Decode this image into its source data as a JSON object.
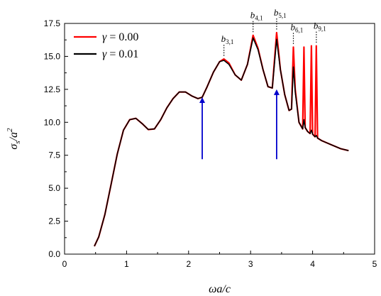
{
  "chart_data": {
    "type": "line",
    "title": "",
    "xlabel": "ωa/c",
    "ylabel_main": "σ",
    "ylabel_sub": "s",
    "ylabel_den": "/a",
    "ylabel_sup": "2",
    "xlim": [
      0,
      5
    ],
    "ylim": [
      0,
      17.5
    ],
    "x_ticks": [
      0,
      1,
      2,
      3,
      4,
      5
    ],
    "x_tick_labels": [
      "0",
      "1",
      "2",
      "3",
      "4",
      "5"
    ],
    "y_ticks": [
      0,
      2.5,
      5,
      7.5,
      10,
      12.5,
      15,
      17.5
    ],
    "y_tick_labels": [
      "0.0",
      "2.5",
      "5.0",
      "7.5",
      "10.0",
      "12.5",
      "15.0",
      "17.5"
    ],
    "grid": false,
    "legend_position": "top-left",
    "series": [
      {
        "name_symbol": "γ",
        "name_value": "= 0.00",
        "color": "#ff0000",
        "x": [
          0.48,
          0.55,
          0.65,
          0.75,
          0.85,
          0.95,
          1.05,
          1.15,
          1.25,
          1.35,
          1.45,
          1.55,
          1.65,
          1.75,
          1.85,
          1.95,
          2.05,
          2.15,
          2.22,
          2.3,
          2.4,
          2.5,
          2.57,
          2.65,
          2.75,
          2.85,
          2.95,
          3.04,
          3.12,
          3.2,
          3.28,
          3.35,
          3.42,
          3.48,
          3.55,
          3.62,
          3.66,
          3.69,
          3.72,
          3.78,
          3.84,
          3.86,
          3.88,
          3.92,
          3.96,
          3.98,
          4.0,
          4.04,
          4.06,
          4.08,
          4.15,
          4.3,
          4.45,
          4.58
        ],
        "y": [
          0.6,
          1.3,
          3.0,
          5.3,
          7.6,
          9.4,
          10.2,
          10.3,
          9.9,
          9.45,
          9.5,
          10.2,
          11.1,
          11.8,
          12.3,
          12.3,
          12.0,
          11.8,
          11.9,
          12.7,
          13.8,
          14.6,
          14.8,
          14.5,
          13.6,
          13.2,
          14.4,
          16.6,
          15.6,
          14.0,
          12.7,
          12.6,
          16.8,
          14.0,
          12.1,
          10.9,
          11.0,
          15.7,
          12.5,
          10.0,
          9.5,
          15.7,
          9.6,
          9.3,
          9.15,
          15.8,
          9.1,
          8.9,
          15.8,
          8.8,
          8.6,
          8.3,
          8.0,
          7.85
        ]
      },
      {
        "name_symbol": "γ",
        "name_value": "= 0.01",
        "color": "#000000",
        "x": [
          0.48,
          0.55,
          0.65,
          0.75,
          0.85,
          0.95,
          1.05,
          1.15,
          1.25,
          1.35,
          1.45,
          1.55,
          1.65,
          1.75,
          1.85,
          1.95,
          2.05,
          2.15,
          2.22,
          2.3,
          2.4,
          2.5,
          2.57,
          2.65,
          2.75,
          2.85,
          2.95,
          3.04,
          3.12,
          3.2,
          3.28,
          3.35,
          3.42,
          3.48,
          3.55,
          3.62,
          3.66,
          3.69,
          3.72,
          3.78,
          3.84,
          3.86,
          3.88,
          3.92,
          3.96,
          3.98,
          4.0,
          4.04,
          4.06,
          4.08,
          4.15,
          4.3,
          4.45,
          4.58
        ],
        "y": [
          0.6,
          1.3,
          3.0,
          5.3,
          7.6,
          9.4,
          10.2,
          10.3,
          9.9,
          9.45,
          9.5,
          10.2,
          11.1,
          11.8,
          12.3,
          12.3,
          12.0,
          11.8,
          11.9,
          12.7,
          13.8,
          14.6,
          14.7,
          14.4,
          13.6,
          13.2,
          14.4,
          16.4,
          15.5,
          14.0,
          12.7,
          12.6,
          16.3,
          14.0,
          12.1,
          10.9,
          11.0,
          14.2,
          12.3,
          10.0,
          9.5,
          10.2,
          9.6,
          9.3,
          9.15,
          9.4,
          9.1,
          8.9,
          9.0,
          8.8,
          8.6,
          8.3,
          8.0,
          7.85
        ]
      }
    ],
    "annotations": [
      {
        "label": "b",
        "sub": "3,1",
        "x": 2.57,
        "y": 14.8
      },
      {
        "label": "b",
        "sub": "4,1",
        "x": 3.04,
        "y": 16.6
      },
      {
        "label": "b",
        "sub": "5,1",
        "x": 3.42,
        "y": 16.8
      },
      {
        "label": "b",
        "sub": "6,1",
        "x": 3.69,
        "y": 15.7
      },
      {
        "label": "b",
        "sub": "9,1",
        "x": 4.06,
        "y": 15.8
      }
    ],
    "arrows": [
      {
        "x": 2.22,
        "y_from": 7.2,
        "y_to": 11.9,
        "color": "#0000cc"
      },
      {
        "x": 3.42,
        "y_from": 7.2,
        "y_to": 12.5,
        "color": "#0000cc"
      }
    ]
  }
}
